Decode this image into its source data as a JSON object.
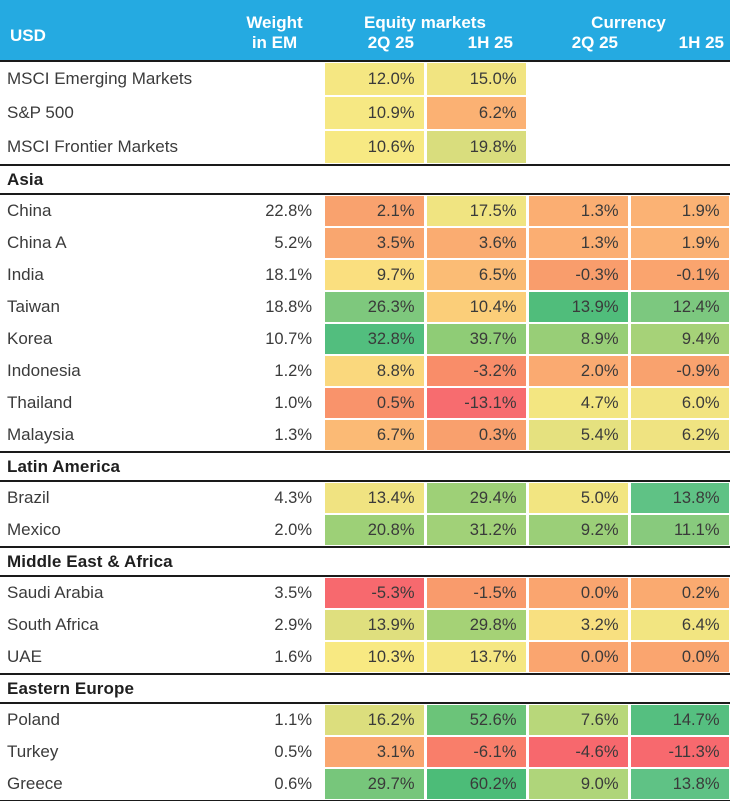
{
  "palette": {
    "header_bg": "#25AAE1",
    "header_text": "#FFFFFF",
    "body_text": "#3B3B3B",
    "rule": "#1A1A1A"
  },
  "header": {
    "usd": "USD",
    "weight_line1": "Weight",
    "weight_line2": "in EM",
    "equity_group": "Equity markets",
    "currency_group": "Currency",
    "eq_2q": "2Q 25",
    "eq_1h": "1H 25",
    "cu_2q": "2Q 25",
    "cu_1h": "1H 25"
  },
  "sections": [
    {
      "title": null,
      "rows": [
        {
          "name": "MSCI Emerging Markets",
          "weight": "",
          "cells": [
            {
              "v": "12.0%",
              "c": "#F5E782"
            },
            {
              "v": "15.0%",
              "c": "#F1E481"
            },
            null,
            null
          ]
        },
        {
          "name": "S&P 500",
          "weight": "",
          "cells": [
            {
              "v": "10.9%",
              "c": "#F6E883"
            },
            {
              "v": "6.2%",
              "c": "#FBB173"
            },
            null,
            null
          ]
        },
        {
          "name": "MSCI Frontier Markets",
          "weight": "",
          "cells": [
            {
              "v": "10.6%",
              "c": "#F7E983"
            },
            {
              "v": "19.8%",
              "c": "#D9DD7D"
            },
            null,
            null
          ]
        }
      ]
    },
    {
      "title": "Asia",
      "rows": [
        {
          "name": "China",
          "weight": "22.8%",
          "cells": [
            {
              "v": "2.1%",
              "c": "#F9A26E"
            },
            {
              "v": "17.5%",
              "c": "#F0E481"
            },
            {
              "v": "1.3%",
              "c": "#FBAE72"
            },
            {
              "v": "1.9%",
              "c": "#FBB274"
            }
          ]
        },
        {
          "name": "China A",
          "weight": "5.2%",
          "cells": [
            {
              "v": "3.5%",
              "c": "#F9A66F"
            },
            {
              "v": "3.6%",
              "c": "#FAAC71"
            },
            {
              "v": "1.3%",
              "c": "#FBAE72"
            },
            {
              "v": "1.9%",
              "c": "#FBB274"
            }
          ]
        },
        {
          "name": "India",
          "weight": "18.1%",
          "cells": [
            {
              "v": "9.7%",
              "c": "#FADF7F"
            },
            {
              "v": "6.5%",
              "c": "#FBBC75"
            },
            {
              "v": "-0.3%",
              "c": "#F99D6C"
            },
            {
              "v": "-0.1%",
              "c": "#FAA46E"
            }
          ]
        },
        {
          "name": "Taiwan",
          "weight": "18.8%",
          "cells": [
            {
              "v": "26.3%",
              "c": "#7EC87D"
            },
            {
              "v": "10.4%",
              "c": "#FBCE79"
            },
            {
              "v": "13.9%",
              "c": "#50BD7B"
            },
            {
              "v": "12.4%",
              "c": "#7CC87F"
            }
          ]
        },
        {
          "name": "Korea",
          "weight": "10.7%",
          "cells": [
            {
              "v": "32.8%",
              "c": "#52BE7E"
            },
            {
              "v": "39.7%",
              "c": "#8FCC76"
            },
            {
              "v": "8.9%",
              "c": "#98CE77"
            },
            {
              "v": "9.4%",
              "c": "#A6D278"
            }
          ]
        },
        {
          "name": "Indonesia",
          "weight": "1.2%",
          "cells": [
            {
              "v": "8.8%",
              "c": "#FAD87D"
            },
            {
              "v": "-3.2%",
              "c": "#F98D69"
            },
            {
              "v": "2.0%",
              "c": "#FAAA71"
            },
            {
              "v": "-0.9%",
              "c": "#F9A26E"
            }
          ]
        },
        {
          "name": "Thailand",
          "weight": "1.0%",
          "cells": [
            {
              "v": "0.5%",
              "c": "#F9936B"
            },
            {
              "v": "-13.1%",
              "c": "#F76C6F"
            },
            {
              "v": "4.7%",
              "c": "#F3E681"
            },
            {
              "v": "6.0%",
              "c": "#F2E481"
            }
          ]
        },
        {
          "name": "Malaysia",
          "weight": "1.3%",
          "cells": [
            {
              "v": "6.7%",
              "c": "#FBBA75"
            },
            {
              "v": "0.3%",
              "c": "#F9A06D"
            },
            {
              "v": "5.4%",
              "c": "#E5E17F"
            },
            {
              "v": "6.2%",
              "c": "#EFE381"
            }
          ]
        }
      ]
    },
    {
      "title": "Latin America",
      "rows": [
        {
          "name": "Brazil",
          "weight": "4.3%",
          "cells": [
            {
              "v": "13.4%",
              "c": "#F0E381"
            },
            {
              "v": "29.4%",
              "c": "#9ED077"
            },
            {
              "v": "5.0%",
              "c": "#F2E581"
            },
            {
              "v": "13.8%",
              "c": "#5FC285"
            }
          ]
        },
        {
          "name": "Mexico",
          "weight": "2.0%",
          "cells": [
            {
              "v": "20.8%",
              "c": "#9DD077"
            },
            {
              "v": "31.2%",
              "c": "#A1D178"
            },
            {
              "v": "9.2%",
              "c": "#9BCF78"
            },
            {
              "v": "11.1%",
              "c": "#88CA7D"
            }
          ]
        }
      ]
    },
    {
      "title": "Middle East & Africa",
      "rows": [
        {
          "name": "Saudi Arabia",
          "weight": "3.5%",
          "cells": [
            {
              "v": "-5.3%",
              "c": "#F7696E"
            },
            {
              "v": "-1.5%",
              "c": "#F99B6C"
            },
            {
              "v": "0.0%",
              "c": "#FAA56F"
            },
            {
              "v": "0.2%",
              "c": "#FAAA70"
            }
          ]
        },
        {
          "name": "South Africa",
          "weight": "2.9%",
          "cells": [
            {
              "v": "13.9%",
              "c": "#DFDF7E"
            },
            {
              "v": "29.8%",
              "c": "#A5D276"
            },
            {
              "v": "3.2%",
              "c": "#F8E080"
            },
            {
              "v": "6.4%",
              "c": "#F2E581"
            }
          ]
        },
        {
          "name": "UAE",
          "weight": "1.6%",
          "cells": [
            {
              "v": "10.3%",
              "c": "#F8E982"
            },
            {
              "v": "13.7%",
              "c": "#F5E782"
            },
            {
              "v": "0.0%",
              "c": "#FAA56F"
            },
            {
              "v": "0.0%",
              "c": "#FAA56F"
            }
          ]
        }
      ]
    },
    {
      "title": "Eastern Europe",
      "rows": [
        {
          "name": "Poland",
          "weight": "1.1%",
          "cells": [
            {
              "v": "16.2%",
              "c": "#DCDE7D"
            },
            {
              "v": "52.6%",
              "c": "#6BC479"
            },
            {
              "v": "7.6%",
              "c": "#B8D77A"
            },
            {
              "v": "14.7%",
              "c": "#55BF80"
            }
          ]
        },
        {
          "name": "Turkey",
          "weight": "0.5%",
          "cells": [
            {
              "v": "3.1%",
              "c": "#FAA770"
            },
            {
              "v": "-6.1%",
              "c": "#F97E6A"
            },
            {
              "v": "-4.6%",
              "c": "#F7686D"
            },
            {
              "v": "-11.3%",
              "c": "#F7696E"
            }
          ]
        },
        {
          "name": "Greece",
          "weight": "0.6%",
          "cells": [
            {
              "v": "29.7%",
              "c": "#77C67B"
            },
            {
              "v": "60.2%",
              "c": "#4CBC78"
            },
            {
              "v": "9.0%",
              "c": "#AFD57A"
            },
            {
              "v": "13.8%",
              "c": "#5FC285"
            }
          ]
        }
      ]
    }
  ],
  "chart_data": {
    "type": "table",
    "title": "USD returns heatmap",
    "columns": [
      "USD",
      "Weight in EM",
      "Equity markets 2Q 25",
      "Equity markets 1H 25",
      "Currency 2Q 25",
      "Currency 1H 25"
    ],
    "rows": [
      {
        "section": null,
        "name": "MSCI Emerging Markets",
        "weight_in_em": null,
        "equity_2q25": 12.0,
        "equity_1h25": 15.0,
        "currency_2q25": null,
        "currency_1h25": null
      },
      {
        "section": null,
        "name": "S&P 500",
        "weight_in_em": null,
        "equity_2q25": 10.9,
        "equity_1h25": 6.2,
        "currency_2q25": null,
        "currency_1h25": null
      },
      {
        "section": null,
        "name": "MSCI Frontier Markets",
        "weight_in_em": null,
        "equity_2q25": 10.6,
        "equity_1h25": 19.8,
        "currency_2q25": null,
        "currency_1h25": null
      },
      {
        "section": "Asia",
        "name": "China",
        "weight_in_em": 22.8,
        "equity_2q25": 2.1,
        "equity_1h25": 17.5,
        "currency_2q25": 1.3,
        "currency_1h25": 1.9
      },
      {
        "section": "Asia",
        "name": "China A",
        "weight_in_em": 5.2,
        "equity_2q25": 3.5,
        "equity_1h25": 3.6,
        "currency_2q25": 1.3,
        "currency_1h25": 1.9
      },
      {
        "section": "Asia",
        "name": "India",
        "weight_in_em": 18.1,
        "equity_2q25": 9.7,
        "equity_1h25": 6.5,
        "currency_2q25": -0.3,
        "currency_1h25": -0.1
      },
      {
        "section": "Asia",
        "name": "Taiwan",
        "weight_in_em": 18.8,
        "equity_2q25": 26.3,
        "equity_1h25": 10.4,
        "currency_2q25": 13.9,
        "currency_1h25": 12.4
      },
      {
        "section": "Asia",
        "name": "Korea",
        "weight_in_em": 10.7,
        "equity_2q25": 32.8,
        "equity_1h25": 39.7,
        "currency_2q25": 8.9,
        "currency_1h25": 9.4
      },
      {
        "section": "Asia",
        "name": "Indonesia",
        "weight_in_em": 1.2,
        "equity_2q25": 8.8,
        "equity_1h25": -3.2,
        "currency_2q25": 2.0,
        "currency_1h25": -0.9
      },
      {
        "section": "Asia",
        "name": "Thailand",
        "weight_in_em": 1.0,
        "equity_2q25": 0.5,
        "equity_1h25": -13.1,
        "currency_2q25": 4.7,
        "currency_1h25": 6.0
      },
      {
        "section": "Asia",
        "name": "Malaysia",
        "weight_in_em": 1.3,
        "equity_2q25": 6.7,
        "equity_1h25": 0.3,
        "currency_2q25": 5.4,
        "currency_1h25": 6.2
      },
      {
        "section": "Latin America",
        "name": "Brazil",
        "weight_in_em": 4.3,
        "equity_2q25": 13.4,
        "equity_1h25": 29.4,
        "currency_2q25": 5.0,
        "currency_1h25": 13.8
      },
      {
        "section": "Latin America",
        "name": "Mexico",
        "weight_in_em": 2.0,
        "equity_2q25": 20.8,
        "equity_1h25": 31.2,
        "currency_2q25": 9.2,
        "currency_1h25": 11.1
      },
      {
        "section": "Middle East & Africa",
        "name": "Saudi Arabia",
        "weight_in_em": 3.5,
        "equity_2q25": -5.3,
        "equity_1h25": -1.5,
        "currency_2q25": 0.0,
        "currency_1h25": 0.2
      },
      {
        "section": "Middle East & Africa",
        "name": "South Africa",
        "weight_in_em": 2.9,
        "equity_2q25": 13.9,
        "equity_1h25": 29.8,
        "currency_2q25": 3.2,
        "currency_1h25": 6.4
      },
      {
        "section": "Middle East & Africa",
        "name": "UAE",
        "weight_in_em": 1.6,
        "equity_2q25": 10.3,
        "equity_1h25": 13.7,
        "currency_2q25": 0.0,
        "currency_1h25": 0.0
      },
      {
        "section": "Eastern Europe",
        "name": "Poland",
        "weight_in_em": 1.1,
        "equity_2q25": 16.2,
        "equity_1h25": 52.6,
        "currency_2q25": 7.6,
        "currency_1h25": 14.7
      },
      {
        "section": "Eastern Europe",
        "name": "Turkey",
        "weight_in_em": 0.5,
        "equity_2q25": 3.1,
        "equity_1h25": -6.1,
        "currency_2q25": -4.6,
        "currency_1h25": -11.3
      },
      {
        "section": "Eastern Europe",
        "name": "Greece",
        "weight_in_em": 0.6,
        "equity_2q25": 29.7,
        "equity_1h25": 60.2,
        "currency_2q25": 9.0,
        "currency_1h25": 13.8
      }
    ],
    "value_unit": "%",
    "heatmap": {
      "negative_color": "#F7696E",
      "mid_color": "#F5E782",
      "positive_color": "#4CBC78"
    }
  }
}
